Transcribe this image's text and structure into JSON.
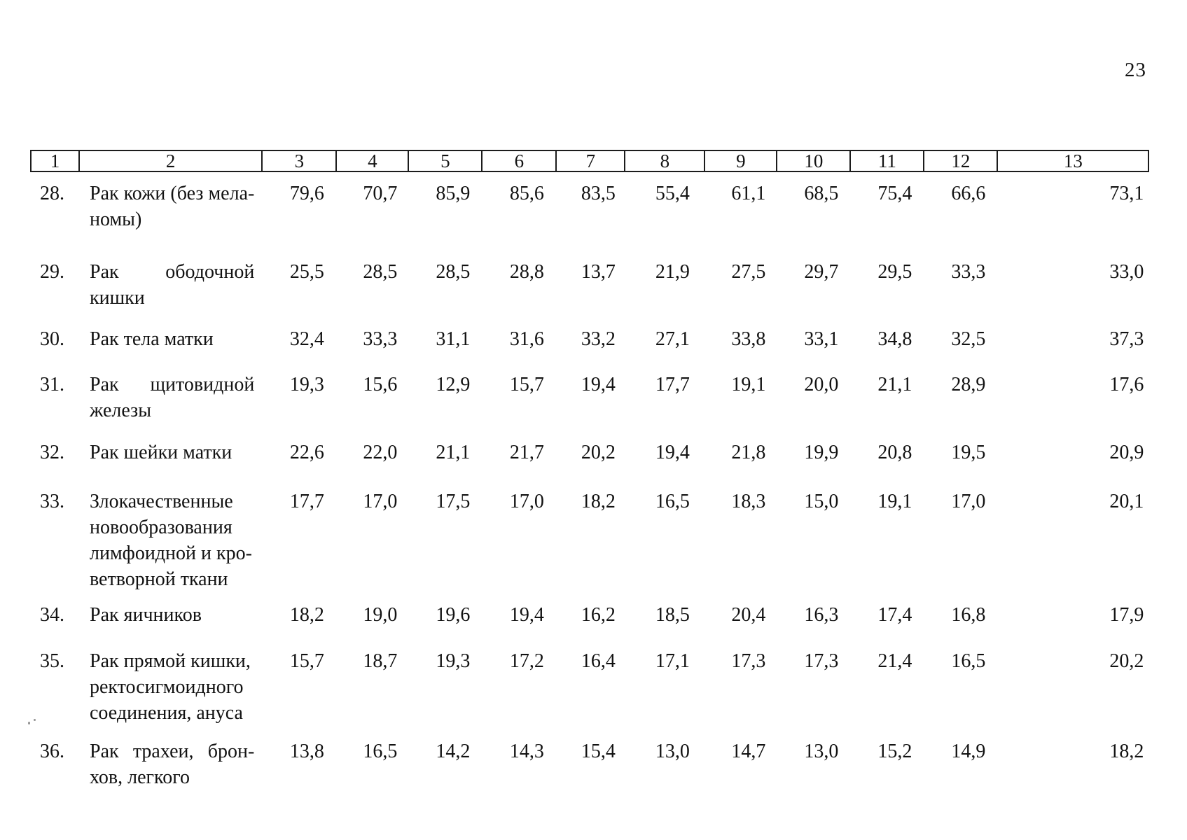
{
  "page": {
    "number": "23"
  },
  "table": {
    "header": [
      "1",
      "2",
      "3",
      "4",
      "5",
      "6",
      "7",
      "8",
      "9",
      "10",
      "11",
      "12",
      "13"
    ],
    "rows": [
      {
        "num": "28.",
        "name_lines": [
          "Рак кожи (без мела-",
          "номы)"
        ],
        "stretch": [],
        "values": [
          "79,6",
          "70,7",
          "85,9",
          "85,6",
          "83,5",
          "55,4",
          "61,1",
          "68,5",
          "75,4",
          "66,6",
          "73,1"
        ]
      },
      {
        "num": "29.",
        "name_lines": [
          "Рак ободочной",
          "кишки"
        ],
        "stretch": [
          0
        ],
        "values": [
          "25,5",
          "28,5",
          "28,5",
          "28,8",
          "13,7",
          "21,9",
          "27,5",
          "29,7",
          "29,5",
          "33,3",
          "33,0"
        ]
      },
      {
        "num": "30.",
        "name_lines": [
          "Рак тела матки"
        ],
        "stretch": [],
        "values": [
          "32,4",
          "33,3",
          "31,1",
          "31,6",
          "33,2",
          "27,1",
          "33,8",
          "33,1",
          "34,8",
          "32,5",
          "37,3"
        ]
      },
      {
        "num": "31.",
        "name_lines": [
          "Рак щитовидной",
          "железы"
        ],
        "stretch": [
          0
        ],
        "values": [
          "19,3",
          "15,6",
          "12,9",
          "15,7",
          "19,4",
          "17,7",
          "19,1",
          "20,0",
          "21,1",
          "28,9",
          "17,6"
        ]
      },
      {
        "num": "32.",
        "name_lines": [
          "Рак шейки матки"
        ],
        "stretch": [],
        "values": [
          "22,6",
          "22,0",
          "21,1",
          "21,7",
          "20,2",
          "19,4",
          "21,8",
          "19,9",
          "20,8",
          "19,5",
          "20,9"
        ]
      },
      {
        "num": "33.",
        "name_lines": [
          "Злокачественные",
          "новообразования",
          "лимфоидной и кро-",
          "ветворной ткани"
        ],
        "stretch": [],
        "values": [
          "17,7",
          "17,0",
          "17,5",
          "17,0",
          "18,2",
          "16,5",
          "18,3",
          "15,0",
          "19,1",
          "17,0",
          "20,1"
        ]
      },
      {
        "num": "34.",
        "name_lines": [
          "Рак яичников"
        ],
        "stretch": [],
        "values": [
          "18,2",
          "19,0",
          "19,6",
          "19,4",
          "16,2",
          "18,5",
          "20,4",
          "16,3",
          "17,4",
          "16,8",
          "17,9"
        ]
      },
      {
        "num": "35.",
        "name_lines": [
          "Рак прямой кишки,",
          "ректосигмоидного",
          "соединения, ануса"
        ],
        "stretch": [],
        "values": [
          "15,7",
          "18,7",
          "19,3",
          "17,2",
          "16,4",
          "17,1",
          "17,3",
          "17,3",
          "21,4",
          "16,5",
          "20,2"
        ]
      },
      {
        "num": "36.",
        "name_lines": [
          "Рак трахеи, брон-",
          "хов, легкого"
        ],
        "stretch": [
          0
        ],
        "values": [
          "13,8",
          "16,5",
          "14,2",
          "14,3",
          "15,4",
          "13,0",
          "14,7",
          "13,0",
          "15,2",
          "14,9",
          "18,2"
        ]
      }
    ]
  }
}
